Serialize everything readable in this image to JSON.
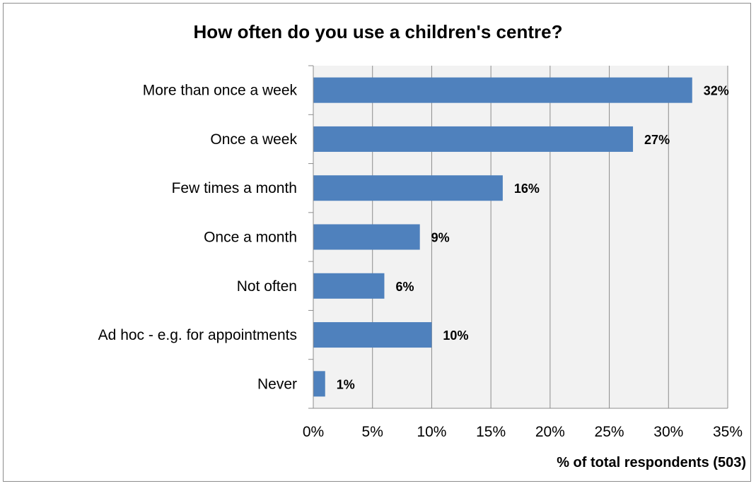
{
  "chart_data": {
    "type": "bar",
    "orientation": "horizontal",
    "title": "How often do you use a children's centre?",
    "xlabel": "% of total respondents (503)",
    "ylabel": "",
    "categories": [
      "More than once a week",
      "Once a week",
      "Few times a month",
      "Once a month",
      "Not often",
      "Ad hoc - e.g. for appointments",
      "Never"
    ],
    "values": [
      32,
      27,
      16,
      9,
      6,
      10,
      1
    ],
    "data_labels": [
      "32%",
      "27%",
      "16%",
      "9%",
      "6%",
      "10%",
      "1%"
    ],
    "xlim": [
      0,
      35
    ],
    "ticks": [
      "0%",
      "5%",
      "10%",
      "15%",
      "20%",
      "25%",
      "30%",
      "35%"
    ],
    "grid": true,
    "legend": "none",
    "colors": {
      "bar": "#4f81bd",
      "plot_bg": "#f2f2f2",
      "gridline": "#8c8c8c"
    }
  }
}
